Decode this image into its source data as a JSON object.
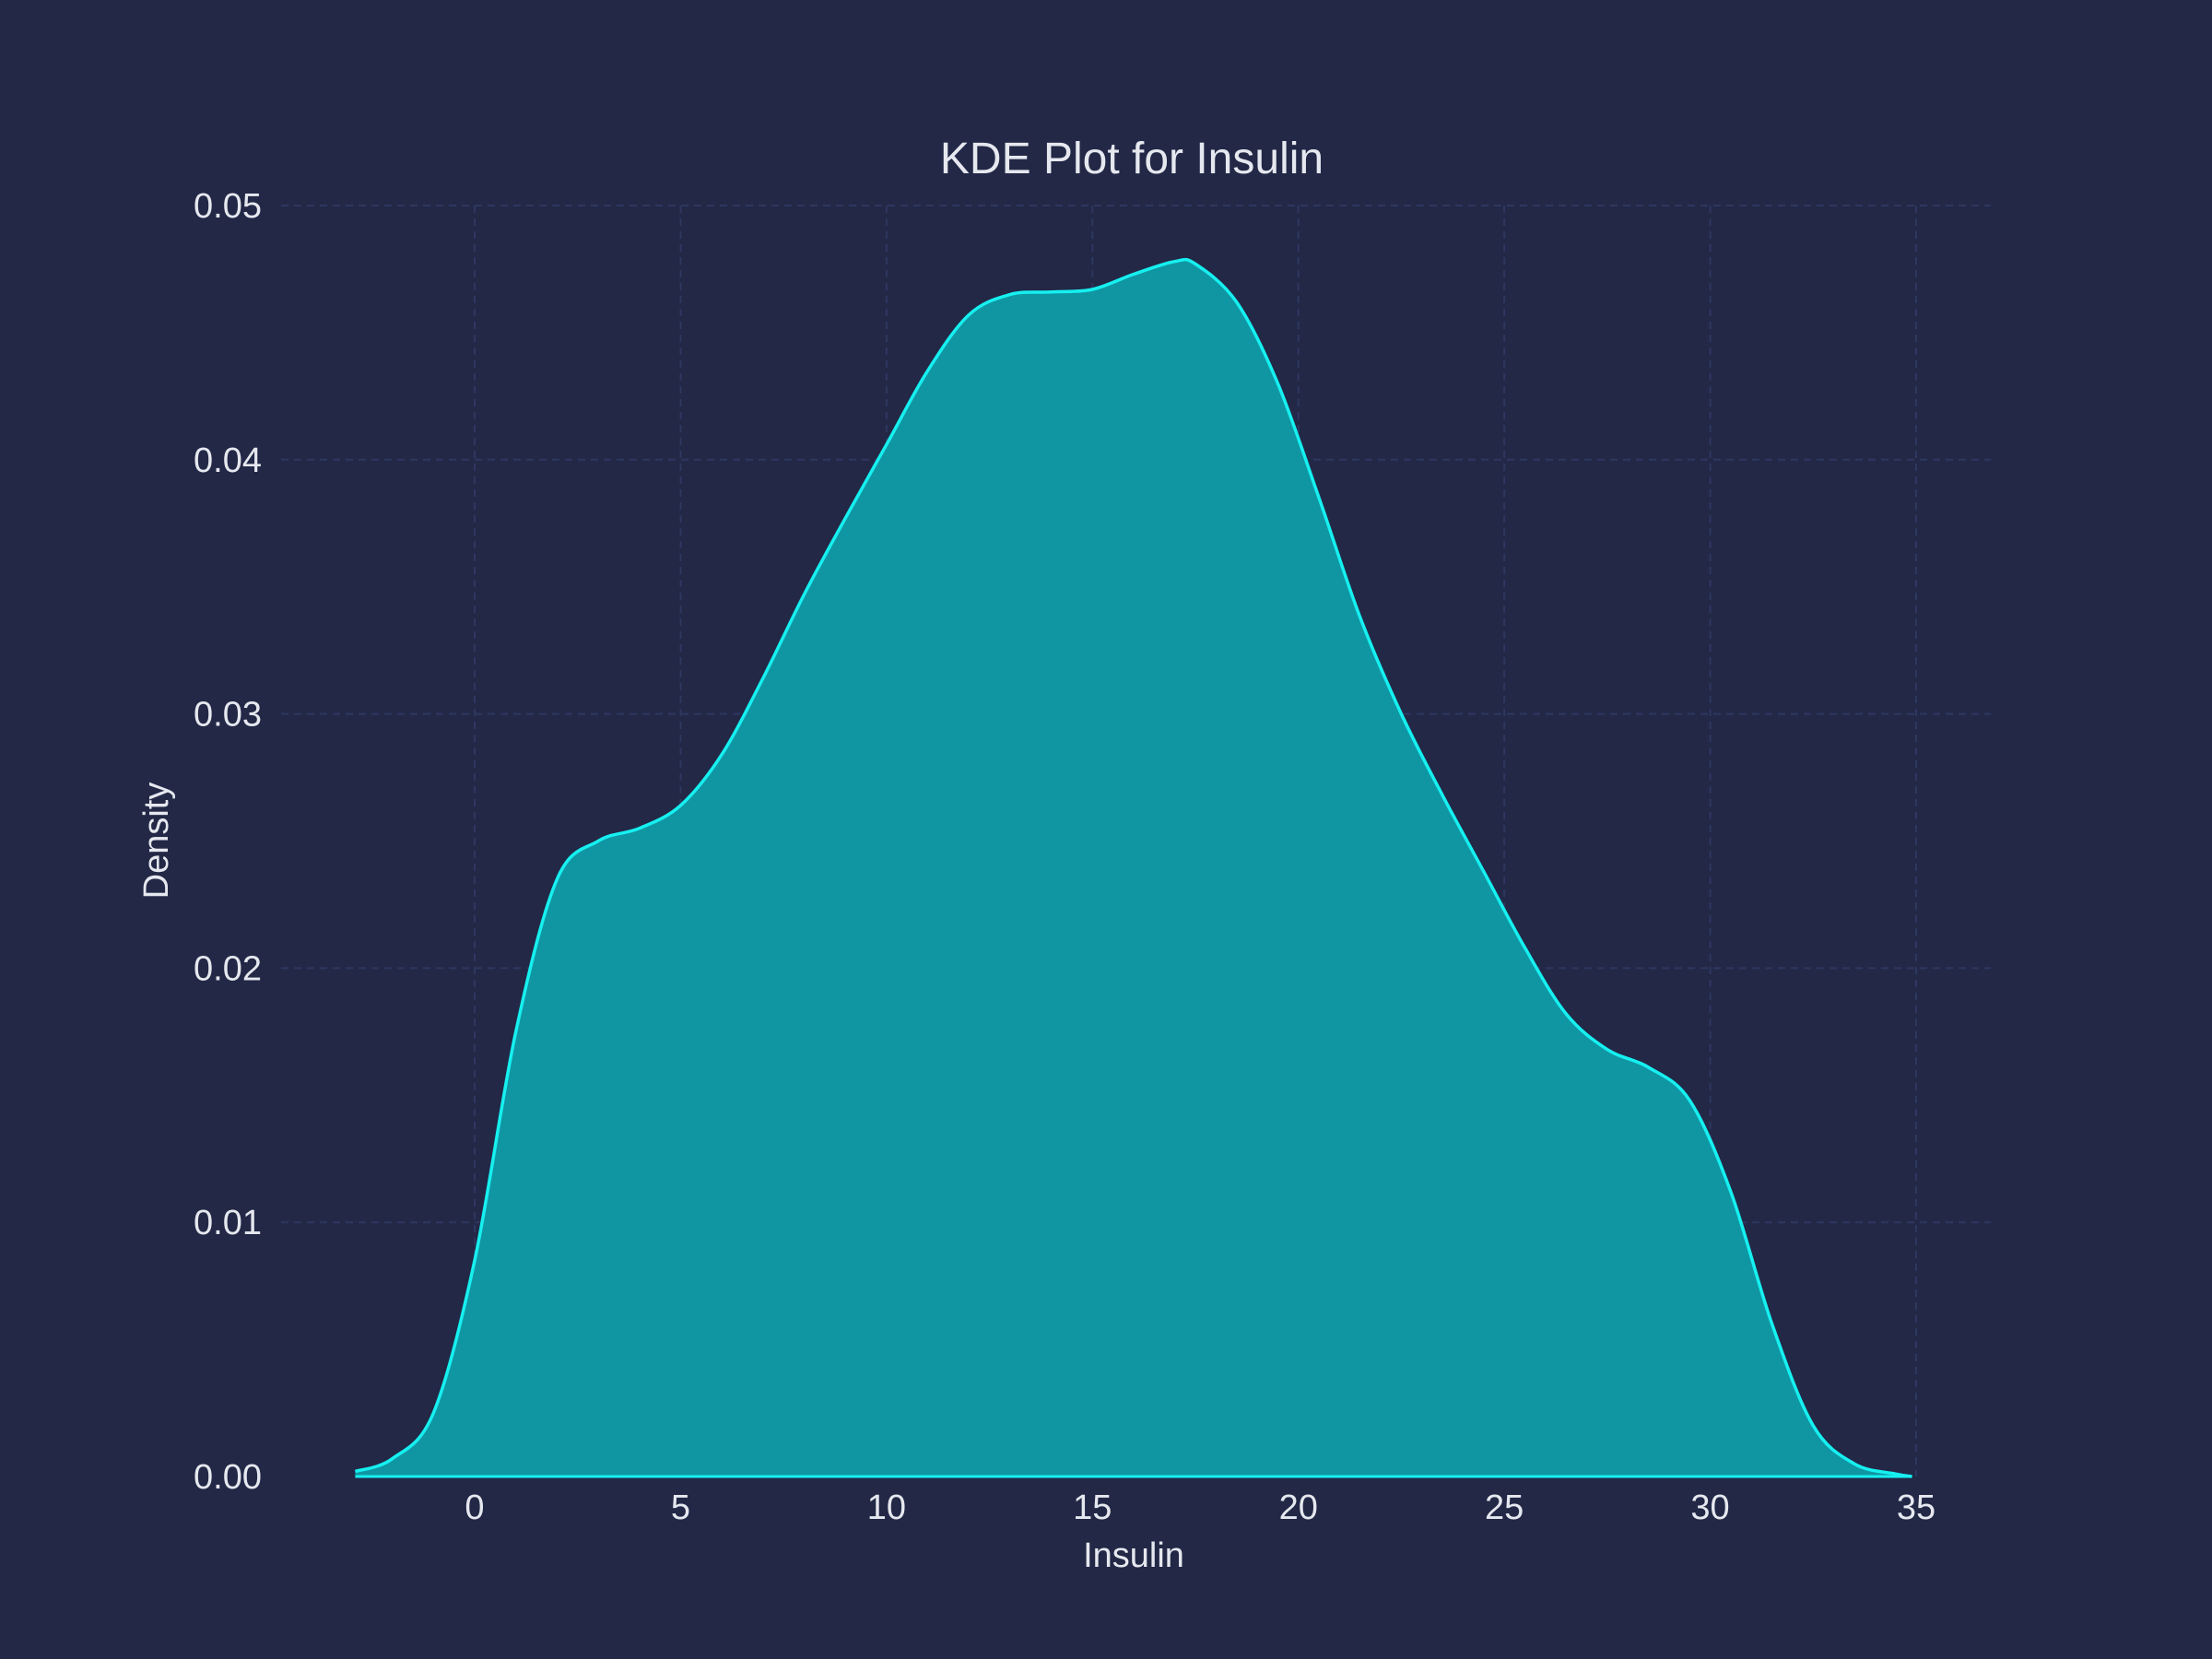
{
  "chart_data": {
    "type": "area",
    "title": "KDE Plot for Insulin",
    "xlabel": "Insulin",
    "ylabel": "Density",
    "xlim": [
      -3,
      35
    ],
    "ylim": [
      0,
      0.05
    ],
    "xticks": [
      0,
      5,
      10,
      15,
      20,
      25,
      30,
      35
    ],
    "yticks": [
      0.0,
      0.01,
      0.02,
      0.03,
      0.04,
      0.05
    ],
    "xtick_labels": [
      "0",
      "5",
      "10",
      "15",
      "20",
      "25",
      "30",
      "35"
    ],
    "ytick_labels": [
      "0.00",
      "0.01",
      "0.02",
      "0.03",
      "0.04",
      "0.05"
    ],
    "grid": true,
    "colors": {
      "line": "#16f0f0",
      "fill": "#1096a3",
      "background": "#222846",
      "grid": "#2e3760",
      "text": "#e6e8ef"
    },
    "series": [
      {
        "x": [
          -2.9,
          -2.0,
          -1.0,
          0.0,
          1.0,
          2.0,
          3.0,
          4.0,
          5.0,
          6.0,
          7.0,
          8.0,
          9.0,
          10.0,
          11.0,
          12.0,
          13.0,
          14.0,
          15.0,
          16.0,
          17.0,
          17.5,
          18.5,
          19.5,
          20.5,
          21.5,
          22.5,
          23.5,
          24.5,
          25.5,
          26.5,
          27.5,
          28.5,
          29.5,
          30.5,
          31.5,
          32.5,
          33.5,
          34.5,
          34.9
        ],
        "y": [
          0.0002,
          0.0007,
          0.0025,
          0.0085,
          0.0175,
          0.0235,
          0.025,
          0.0255,
          0.0264,
          0.0284,
          0.0314,
          0.0347,
          0.0377,
          0.0406,
          0.0435,
          0.0457,
          0.0465,
          0.0466,
          0.0467,
          0.0473,
          0.0478,
          0.0477,
          0.0462,
          0.043,
          0.0385,
          0.0338,
          0.03,
          0.0268,
          0.0238,
          0.0208,
          0.0182,
          0.0168,
          0.0161,
          0.0148,
          0.0112,
          0.006,
          0.002,
          0.0005,
          0.0001,
          0.0
        ]
      }
    ]
  }
}
